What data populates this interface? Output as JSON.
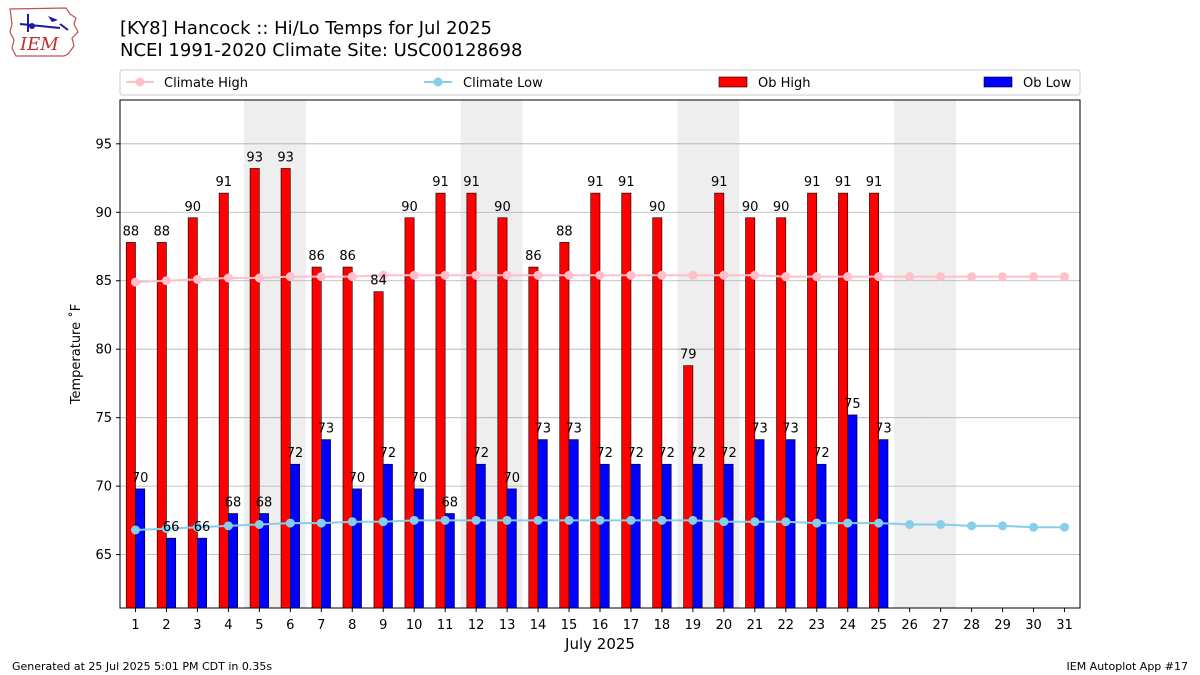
{
  "header": {
    "title_line1": "[KY8] Hancock :: Hi/Lo Temps for Jul 2025",
    "title_line2": "NCEI 1991-2020 Climate Site: USC00128698"
  },
  "logo": {
    "text": "IEM"
  },
  "footer": {
    "left": "Generated at 25 Jul 2025 5:01 PM CDT in 0.35s",
    "right": "IEM Autoplot App #17"
  },
  "colors": {
    "ob_high": "#ff0000",
    "ob_low": "#0000ff",
    "climate_high": "#ffc0cb",
    "climate_low": "#87ceeb",
    "weekend_band": "#eeeeee",
    "grid": "#b0b0b0"
  },
  "chart_data": {
    "type": "bar",
    "title": "[KY8] Hancock :: Hi/Lo Temps for Jul 2025",
    "subtitle": "NCEI 1991-2020 Climate Site: USC00128698",
    "xlabel": "July 2025",
    "ylabel": "Temperature ˚F",
    "ylim": [
      61.1,
      98.2
    ],
    "yticks": [
      65,
      70,
      75,
      80,
      85,
      90,
      95
    ],
    "grid": true,
    "legend_placement": "top",
    "categories": [
      "1",
      "2",
      "3",
      "4",
      "5",
      "6",
      "7",
      "8",
      "9",
      "10",
      "11",
      "12",
      "13",
      "14",
      "15",
      "16",
      "17",
      "18",
      "19",
      "20",
      "21",
      "22",
      "23",
      "24",
      "25",
      "26",
      "27",
      "28",
      "29",
      "30",
      "31"
    ],
    "weekend_days": [
      5,
      6,
      12,
      13,
      19,
      20,
      26,
      27
    ],
    "bar_series": [
      {
        "name": "Ob High",
        "values": [
          88,
          88,
          90,
          91,
          93,
          93,
          86,
          86,
          84,
          90,
          91,
          91,
          90,
          86,
          88,
          91,
          91,
          90,
          79,
          91,
          90,
          90,
          91,
          91,
          91,
          null,
          null,
          null,
          null,
          null,
          null
        ],
        "plotted": [
          87.8,
          87.8,
          89.6,
          91.4,
          93.2,
          93.2,
          86.0,
          86.0,
          84.2,
          89.6,
          91.4,
          91.4,
          89.6,
          86.0,
          87.8,
          91.4,
          91.4,
          89.6,
          78.8,
          91.4,
          89.6,
          89.6,
          91.4,
          91.4,
          91.4,
          null,
          null,
          null,
          null,
          null,
          null
        ]
      },
      {
        "name": "Ob Low",
        "values": [
          70,
          66,
          66,
          68,
          68,
          72,
          73,
          70,
          72,
          70,
          68,
          72,
          70,
          73,
          73,
          72,
          72,
          72,
          72,
          72,
          73,
          73,
          72,
          75,
          73,
          null,
          null,
          null,
          null,
          null,
          null
        ],
        "plotted": [
          69.8,
          66.2,
          66.2,
          68.0,
          68.0,
          71.6,
          73.4,
          69.8,
          71.6,
          69.8,
          68.0,
          71.6,
          69.8,
          73.4,
          73.4,
          71.6,
          71.6,
          71.6,
          71.6,
          71.6,
          73.4,
          73.4,
          71.6,
          75.2,
          73.4,
          null,
          null,
          null,
          null,
          null,
          null
        ]
      }
    ],
    "line_series": [
      {
        "name": "Climate High",
        "values": [
          84.9,
          85.0,
          85.1,
          85.2,
          85.2,
          85.3,
          85.3,
          85.3,
          85.4,
          85.4,
          85.4,
          85.4,
          85.4,
          85.4,
          85.4,
          85.4,
          85.4,
          85.4,
          85.4,
          85.4,
          85.4,
          85.3,
          85.3,
          85.3,
          85.3,
          85.3,
          85.3,
          85.3,
          85.3,
          85.3,
          85.3
        ]
      },
      {
        "name": "Climate Low",
        "values": [
          66.8,
          66.9,
          67.0,
          67.1,
          67.2,
          67.3,
          67.3,
          67.4,
          67.4,
          67.5,
          67.5,
          67.5,
          67.5,
          67.5,
          67.5,
          67.5,
          67.5,
          67.5,
          67.5,
          67.4,
          67.4,
          67.4,
          67.3,
          67.3,
          67.3,
          67.2,
          67.2,
          67.1,
          67.1,
          67.0,
          67.0
        ]
      }
    ],
    "legend": [
      "Climate High",
      "Climate Low",
      "Ob High",
      "Ob Low"
    ]
  }
}
